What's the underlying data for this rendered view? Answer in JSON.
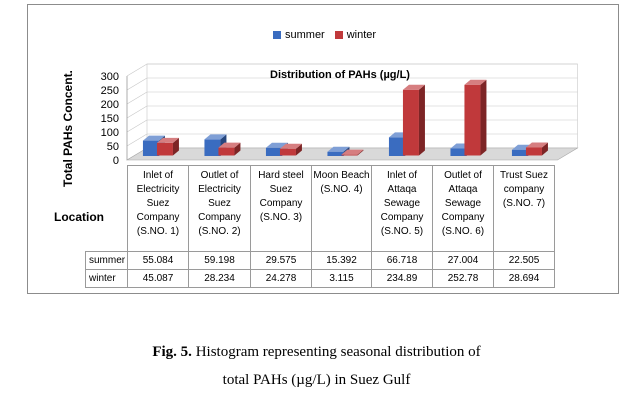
{
  "chart_data": {
    "type": "bar",
    "title": "Distribution of PAHs  (µg/L)",
    "ylabel": "Total PAHs Concent.",
    "xlabel": "Location",
    "ylim": [
      0,
      300
    ],
    "yticks": [
      "0",
      "50",
      "100",
      "150",
      "200",
      "250",
      "300"
    ],
    "legend_position": "top",
    "grid": true,
    "categories": [
      "Inlet of Electricity Suez Company (S.NO. 1)",
      "Outlet of Electricity Suez Company (S.NO. 2)",
      "Hard steel Suez Company (S.NO. 3)",
      "Moon Beach (S.NO. 4)",
      "Inlet of Attaqa Sewage Company (S.NO. 5)",
      "Outlet of Attaqa Sewage Company (S.NO. 6)",
      "Trust Suez company (S.NO. 7)"
    ],
    "category_lines": [
      [
        "Inlet of",
        "Electricity",
        "Suez",
        "Company",
        "(S.NO. 1)"
      ],
      [
        "Outlet of",
        "Electricity",
        "Suez",
        "Company",
        "(S.NO. 2)"
      ],
      [
        "Hard steel",
        "Suez",
        "Company",
        "(S.NO. 3)"
      ],
      [
        "Moon Beach",
        "(S.NO. 4)"
      ],
      [
        "Inlet of",
        "Attaqa",
        "Sewage",
        "Company",
        "(S.NO. 5)"
      ],
      [
        "Outlet of",
        "Attaqa",
        "Sewage",
        "Company",
        "(S.NO. 6)"
      ],
      [
        "Trust Suez",
        "company",
        "(S.NO. 7)"
      ]
    ],
    "series": [
      {
        "name": "summer",
        "color": "#3a6cc0",
        "values": [
          55.084,
          59.198,
          29.575,
          15.392,
          66.718,
          27.004,
          22.505
        ],
        "labels": [
          "55.084",
          "59.198",
          "29.575",
          "15.392",
          "66.718",
          "27.004",
          "22.505"
        ]
      },
      {
        "name": "winter",
        "color": "#c0393b",
        "values": [
          45.087,
          28.234,
          24.278,
          3.115,
          234.89,
          252.78,
          28.694
        ],
        "labels": [
          "45.087",
          "28.234",
          "24.278",
          "3.115",
          "234.89",
          "252.78",
          "28.694"
        ]
      }
    ]
  },
  "caption": {
    "fig_label": "Fig. 5.",
    "line1": " Histogram representing seasonal distribution of",
    "line2": "total PAHs (µg/L) in Suez Gulf"
  }
}
